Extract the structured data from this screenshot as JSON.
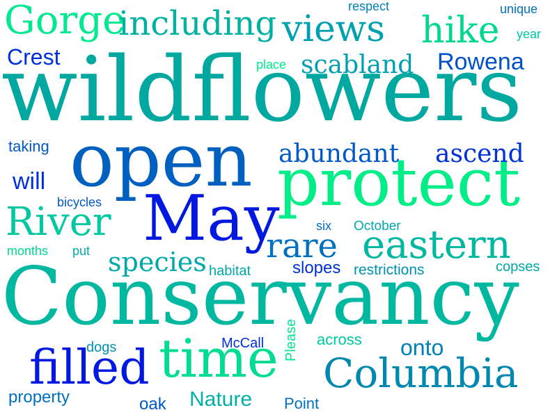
{
  "colors": {
    "background": "#ffffff",
    "palette": [
      "#00ee88",
      "#00c8a0",
      "#00a8a8",
      "#0090b0",
      "#0070c8",
      "#0040d8",
      "#0018e0"
    ]
  },
  "words": [
    {
      "text": "wildflowers",
      "color": "#00a8a0"
    },
    {
      "text": "Conservancy",
      "color": "#00b8a0"
    },
    {
      "text": "protect",
      "color": "#00ee88"
    },
    {
      "text": "open",
      "color": "#0060c0"
    },
    {
      "text": "May",
      "color": "#0018e0"
    },
    {
      "text": "time",
      "color": "#00dd90"
    },
    {
      "text": "Columbia",
      "color": "#0088b0"
    },
    {
      "text": "eastern",
      "color": "#00b8a0"
    },
    {
      "text": "filled",
      "color": "#0018e0"
    },
    {
      "text": "views",
      "color": "#00a0b0"
    },
    {
      "text": "hike",
      "color": "#00d890"
    },
    {
      "text": "Gorge",
      "color": "#00e890"
    },
    {
      "text": "including",
      "color": "#00b0a0"
    },
    {
      "text": "River",
      "color": "#00c8a0"
    },
    {
      "text": "rare",
      "color": "#0070c0"
    },
    {
      "text": "scabland",
      "color": "#00a0b0"
    },
    {
      "text": "Rowena",
      "color": "#0050c8"
    },
    {
      "text": "Crest",
      "color": "#0030d8"
    },
    {
      "text": "abundant",
      "color": "#0058c8"
    },
    {
      "text": "ascend",
      "color": "#0030d8"
    },
    {
      "text": "species",
      "color": "#00a8a8"
    },
    {
      "text": "will",
      "color": "#0030d8"
    },
    {
      "text": "onto",
      "color": "#0080b8"
    },
    {
      "text": "Nature",
      "color": "#00b0a8"
    },
    {
      "text": "slopes",
      "color": "#0030d8"
    },
    {
      "text": "taking",
      "color": "#0058c8"
    },
    {
      "text": "bicycles",
      "color": "#0058c8"
    },
    {
      "text": "six",
      "color": "#0070c0"
    },
    {
      "text": "October",
      "color": "#00a8b0"
    },
    {
      "text": "months",
      "color": "#00d890"
    },
    {
      "text": "put",
      "color": "#00b0a8"
    },
    {
      "text": "habitat",
      "color": "#00a8a8"
    },
    {
      "text": "restrictions",
      "color": "#0090b0"
    },
    {
      "text": "copses",
      "color": "#00a8a8"
    },
    {
      "text": "Please",
      "color": "#00e890"
    },
    {
      "text": "McCall",
      "color": "#0030d8"
    },
    {
      "text": "across",
      "color": "#00c8a0"
    },
    {
      "text": "dogs",
      "color": "#0090b0"
    },
    {
      "text": "property",
      "color": "#0070c0"
    },
    {
      "text": "oak",
      "color": "#0058c8"
    },
    {
      "text": "Point",
      "color": "#0070c0"
    },
    {
      "text": "place",
      "color": "#00ee88"
    },
    {
      "text": "respect",
      "color": "#0080b8"
    },
    {
      "text": "unique",
      "color": "#0070c0"
    },
    {
      "text": "year",
      "color": "#00c8a0"
    }
  ]
}
